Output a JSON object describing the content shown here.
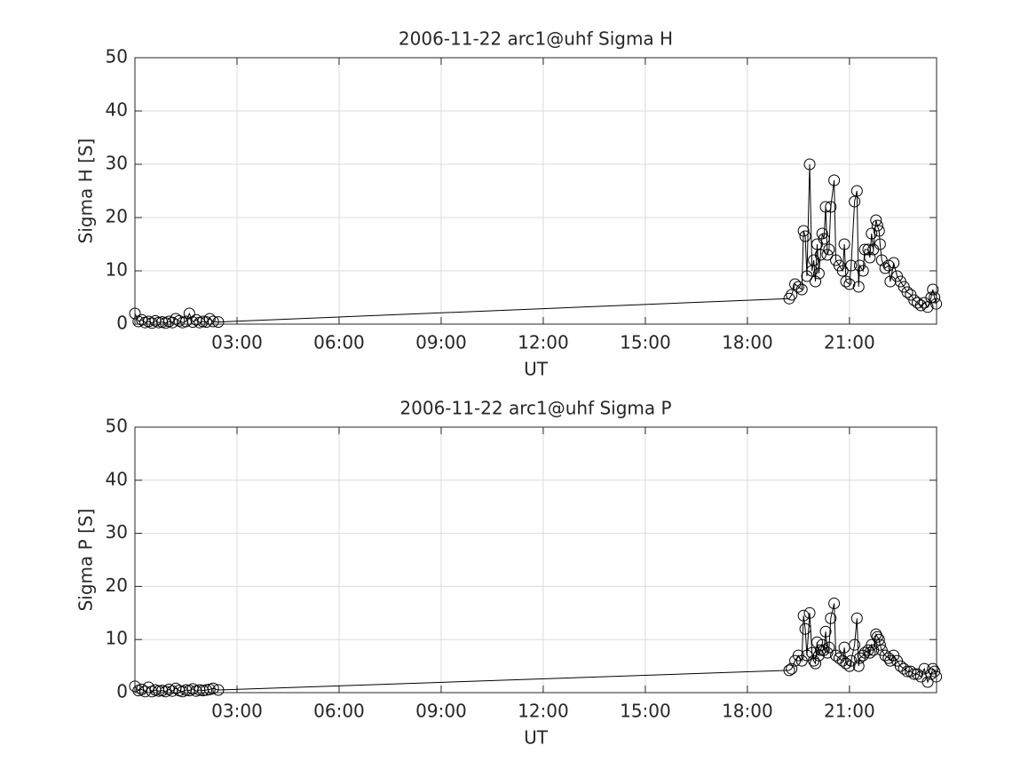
{
  "chart_data": [
    {
      "type": "line",
      "title": "2006-11-22  arc1@uhf Sigma H",
      "xlabel": "UT",
      "ylabel": "Sigma H [S]",
      "grid": true,
      "color": "#000000",
      "marker": "circle",
      "xlim": [
        0,
        23.56
      ],
      "ylim": [
        0,
        50
      ],
      "xticks": [
        {
          "value": 3,
          "label": "03:00"
        },
        {
          "value": 6,
          "label": "06:00"
        },
        {
          "value": 9,
          "label": "09:00"
        },
        {
          "value": 12,
          "label": "12:00"
        },
        {
          "value": 15,
          "label": "15:00"
        },
        {
          "value": 18,
          "label": "18:00"
        },
        {
          "value": 21,
          "label": "21:00"
        }
      ],
      "yticks": [
        0,
        10,
        20,
        30,
        40,
        50
      ],
      "x": [
        0,
        0.1,
        0.2,
        0.3,
        0.4,
        0.5,
        0.6,
        0.7,
        0.8,
        0.9,
        1.0,
        1.1,
        1.2,
        1.3,
        1.4,
        1.5,
        1.6,
        1.7,
        1.8,
        1.9,
        2.0,
        2.1,
        2.2,
        2.3,
        2.45,
        19.23,
        19.3,
        19.4,
        19.5,
        19.6,
        19.65,
        19.7,
        19.75,
        19.83,
        19.9,
        19.95,
        20.0,
        20.05,
        20.1,
        20.15,
        20.2,
        20.25,
        20.3,
        20.35,
        20.4,
        20.45,
        20.55,
        20.6,
        20.7,
        20.8,
        20.85,
        20.9,
        21.0,
        21.05,
        21.15,
        21.22,
        21.27,
        21.3,
        21.4,
        21.45,
        21.55,
        21.6,
        21.65,
        21.7,
        21.78,
        21.82,
        21.87,
        21.9,
        21.95,
        22.05,
        22.15,
        22.2,
        22.3,
        22.4,
        22.5,
        22.6,
        22.7,
        22.8,
        22.9,
        23.0,
        23.1,
        23.2,
        23.3,
        23.4,
        23.45,
        23.5,
        23.55
      ],
      "values": [
        2.0,
        0.5,
        0.8,
        0.3,
        0.5,
        0.2,
        0.6,
        0.3,
        0.4,
        0.2,
        0.5,
        0.3,
        1.0,
        0.6,
        0.3,
        0.5,
        2.0,
        0.4,
        0.8,
        0.3,
        0.5,
        0.4,
        1.0,
        0.5,
        0.4,
        4.8,
        5.5,
        7.5,
        7.0,
        6.5,
        17.5,
        16.5,
        9,
        30,
        10,
        12,
        8,
        15,
        9.5,
        13,
        17,
        16,
        22,
        13,
        14,
        22,
        27,
        12,
        11,
        10,
        15,
        8,
        7.5,
        11,
        23,
        25,
        7,
        11,
        10,
        14,
        14,
        12.5,
        17,
        14,
        19.5,
        18.5,
        17.5,
        15,
        12,
        10.5,
        11,
        8,
        11.5,
        9,
        8,
        7,
        6,
        5.5,
        4.5,
        4,
        3.5,
        4,
        3.2,
        5,
        6.5,
        5,
        3.8
      ]
    },
    {
      "type": "line",
      "title": "2006-11-22  arc1@uhf Sigma P",
      "xlabel": "UT",
      "ylabel": "Sigma P [S]",
      "grid": true,
      "color": "#000000",
      "marker": "circle",
      "xlim": [
        0,
        23.56
      ],
      "ylim": [
        0,
        50
      ],
      "xticks": [
        {
          "value": 3,
          "label": "03:00"
        },
        {
          "value": 6,
          "label": "06:00"
        },
        {
          "value": 9,
          "label": "09:00"
        },
        {
          "value": 12,
          "label": "12:00"
        },
        {
          "value": 15,
          "label": "15:00"
        },
        {
          "value": 18,
          "label": "18:00"
        },
        {
          "value": 21,
          "label": "21:00"
        }
      ],
      "yticks": [
        0,
        10,
        20,
        30,
        40,
        50
      ],
      "x": [
        0,
        0.1,
        0.2,
        0.3,
        0.4,
        0.5,
        0.6,
        0.7,
        0.8,
        0.9,
        1.0,
        1.1,
        1.2,
        1.3,
        1.4,
        1.5,
        1.6,
        1.7,
        1.8,
        1.9,
        2.0,
        2.1,
        2.2,
        2.3,
        2.45,
        19.23,
        19.3,
        19.4,
        19.5,
        19.6,
        19.65,
        19.7,
        19.75,
        19.83,
        19.9,
        19.95,
        20.0,
        20.05,
        20.1,
        20.15,
        20.2,
        20.25,
        20.3,
        20.35,
        20.4,
        20.45,
        20.55,
        20.6,
        20.7,
        20.8,
        20.85,
        20.9,
        21.0,
        21.05,
        21.15,
        21.22,
        21.27,
        21.3,
        21.4,
        21.45,
        21.55,
        21.6,
        21.65,
        21.7,
        21.78,
        21.82,
        21.87,
        21.9,
        21.95,
        22.05,
        22.15,
        22.2,
        22.3,
        22.4,
        22.5,
        22.6,
        22.7,
        22.8,
        22.9,
        23.0,
        23.1,
        23.2,
        23.3,
        23.4,
        23.45,
        23.5,
        23.55
      ],
      "values": [
        1.2,
        0.4,
        0.6,
        0.2,
        1.0,
        0.2,
        0.5,
        0.3,
        0.4,
        0.2,
        0.6,
        0.3,
        0.8,
        0.4,
        0.2,
        0.5,
        0.4,
        0.7,
        0.3,
        0.5,
        0.4,
        0.5,
        0.6,
        0.8,
        0.5,
        4.2,
        4.5,
        6,
        7,
        6,
        14.5,
        12,
        7,
        15,
        7.5,
        6,
        5.5,
        9.5,
        7,
        8,
        9,
        8,
        11.5,
        7.5,
        8.5,
        14,
        16.8,
        7,
        6.5,
        6,
        8.5,
        5.5,
        5,
        6,
        9,
        14,
        5,
        6.5,
        7,
        7.5,
        8,
        7.5,
        9,
        8,
        11,
        10.5,
        10,
        9,
        8,
        7,
        6.5,
        6,
        7,
        6,
        5,
        4.5,
        4,
        4,
        3.5,
        3.5,
        3,
        4.5,
        2,
        3.5,
        4.5,
        4,
        3
      ]
    }
  ]
}
